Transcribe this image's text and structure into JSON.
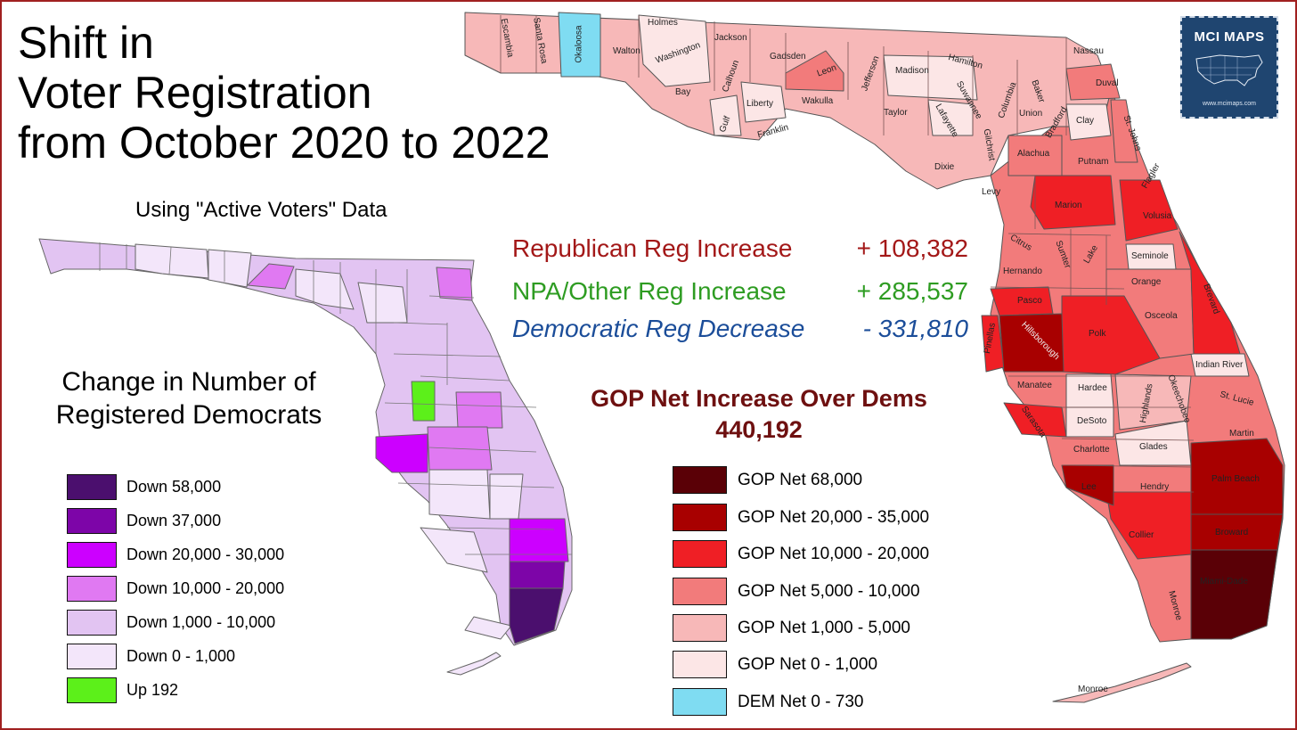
{
  "title": {
    "line1": "Shift in",
    "line2": "Voter Registration",
    "line3": "from October 2020 to 2022"
  },
  "subtitle": "Using \"Active Voters\" Data",
  "dem_map": {
    "heading_line1": "Change in Number of",
    "heading_line2": "Registered Democrats",
    "legend": [
      {
        "label": "Down 58,000",
        "color": "#4b0f6e"
      },
      {
        "label": "Down 37,000",
        "color": "#7d05a8"
      },
      {
        "label": "Down 20,000 - 30,000",
        "color": "#cc00ff"
      },
      {
        "label": "Down 10,000 - 20,000",
        "color": "#e079f2"
      },
      {
        "label": "Down 1,000 - 10,000",
        "color": "#e2c4f2"
      },
      {
        "label": "Down 0 - 1,000",
        "color": "#f3e6fa"
      },
      {
        "label": "Up 192",
        "color": "#5cf01a"
      }
    ]
  },
  "stats": [
    {
      "label": "Republican Reg Increase",
      "value": "+ 108,382",
      "color": "#a31818",
      "italic": false
    },
    {
      "label": "NPA/Other Reg Increase",
      "value": "+ 285,537",
      "color": "#2e9c22",
      "italic": false
    },
    {
      "label": "Democratic Reg Decrease",
      "value": "- 331,810",
      "color": "#1b4d99",
      "italic": true
    }
  ],
  "gop_net": {
    "line1": "GOP Net Increase Over Dems",
    "line2": "440,192"
  },
  "gop_map": {
    "legend": [
      {
        "label": "GOP Net 68,000",
        "color": "#5a0006"
      },
      {
        "label": "GOP Net 20,000 - 35,000",
        "color": "#a80000"
      },
      {
        "label": "GOP Net 10,000 - 20,000",
        "color": "#ef1f25"
      },
      {
        "label": "GOP Net 5,000 - 10,000",
        "color": "#f27b7b"
      },
      {
        "label": "GOP Net 1,000 - 5,000",
        "color": "#f7b8b8"
      },
      {
        "label": "GOP Net 0 - 1,000",
        "color": "#fce6e6"
      },
      {
        "label": "DEM Net 0 - 730",
        "color": "#7fdcf2"
      }
    ],
    "county_labels": [
      "Escambia",
      "Santa Rosa",
      "Okaloosa",
      "Walton",
      "Holmes",
      "Washington",
      "Jackson",
      "Bay",
      "Calhoun",
      "Gadsden",
      "Leon",
      "Jefferson",
      "Madison",
      "Hamilton",
      "Columbia",
      "Baker",
      "Nassau",
      "Duval",
      "Liberty",
      "Gulf",
      "Franklin",
      "Wakulla",
      "Taylor",
      "Lafayette",
      "Suwannee",
      "Union",
      "Bradford",
      "Clay",
      "St. Johns",
      "Gilchrist",
      "Dixie",
      "Alachua",
      "Putnam",
      "Flagler",
      "Levy",
      "Marion",
      "Volusia",
      "Citrus",
      "Sumter",
      "Lake",
      "Seminole",
      "Hernando",
      "Orange",
      "Brevard",
      "Pasco",
      "Osceola",
      "Pinellas",
      "Hillsborough",
      "Polk",
      "Indian River",
      "Manatee",
      "Hardee",
      "Highlands",
      "Okeechobee",
      "St. Lucie",
      "Sarasota",
      "DeSoto",
      "Martin",
      "Charlotte",
      "Glades",
      "Palm Beach",
      "Lee",
      "Hendry",
      "Broward",
      "Collier",
      "Miami-Dade",
      "Monroe",
      "Monroe"
    ]
  },
  "logo": {
    "text": "MCI MAPS",
    "url": "www.mcimaps.com"
  }
}
